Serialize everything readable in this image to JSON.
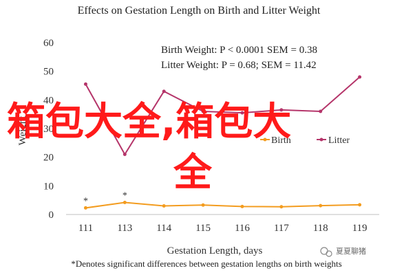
{
  "chart_data": {
    "type": "line",
    "title": "Effects on Gestation Length on Birth and Litter Weight",
    "xlabel": "Gestation Length, days",
    "ylabel": "Weight",
    "categories": [
      "111",
      "113",
      "114",
      "115",
      "116",
      "117",
      "118",
      "119"
    ],
    "ylim": [
      0,
      60
    ],
    "yticks": [
      0,
      10,
      20,
      30,
      40,
      50,
      60
    ],
    "grid": false,
    "legend_position": "middle-right",
    "series": [
      {
        "name": "Birth",
        "color": "#f39c1f",
        "values": [
          2.3,
          4.2,
          3.0,
          3.3,
          2.8,
          2.7,
          3.1,
          3.4
        ]
      },
      {
        "name": "Litter",
        "color": "#b5356a",
        "values": [
          45.5,
          21,
          43,
          36,
          35.5,
          36.5,
          36,
          48
        ]
      }
    ],
    "annotations": [
      {
        "text": "*",
        "category": "111"
      },
      {
        "text": "*",
        "category": "113"
      }
    ],
    "stats": [
      "Birth Weight: P < 0.0001 SEM = 0.38",
      "Litter Weight: P = 0.68; SEM = 11.42"
    ],
    "footnote": "*Denotes significant differences between gestation lengths on birth weights"
  },
  "watermark": {
    "overlay_line1": "箱包大全,箱包大",
    "overlay_line2": "全",
    "account": "夏夏聊猪"
  }
}
